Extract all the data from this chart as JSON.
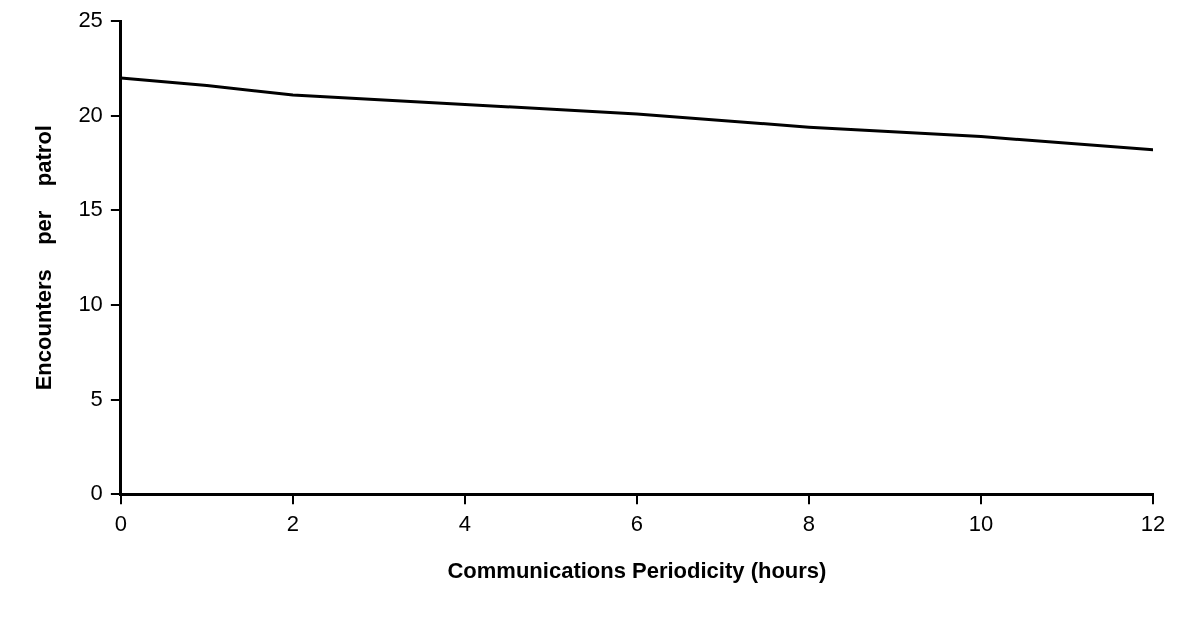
{
  "chart_data": {
    "type": "line",
    "xlabel": "Communications Periodicity (hours)",
    "ylabel": "Encounters    per    patrol",
    "series": [
      {
        "color": "#000000",
        "x": [
          0,
          1,
          2,
          4,
          6,
          8,
          10,
          12
        ],
        "values": [
          22.0,
          21.6,
          21.1,
          20.6,
          20.1,
          19.4,
          18.9,
          18.2
        ]
      }
    ],
    "xlim": [
      0,
      12
    ],
    "xticks": [
      0,
      2,
      4,
      6,
      8,
      10,
      12
    ],
    "ylim": [
      0,
      25
    ],
    "yticks": [
      0,
      5,
      10,
      15,
      20,
      25
    ],
    "grid": false,
    "legend": false,
    "marker": "none",
    "line_style": "solid"
  }
}
